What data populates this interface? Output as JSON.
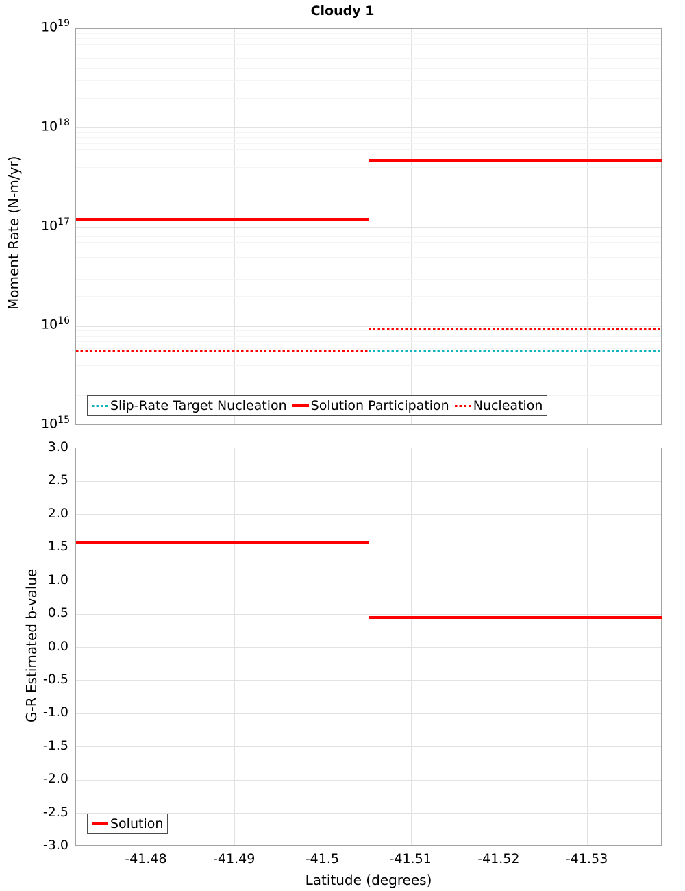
{
  "title": "Cloudy 1",
  "colors": {
    "red": "#fe0000",
    "teal": "#12b5bc",
    "grid_major": "#e2e2e2",
    "grid_minor": "#f4f4f4",
    "axis_border": "#a3a3a3",
    "legend_border": "#4d4d4d"
  },
  "chart_data": [
    {
      "type": "line",
      "name": "moment-rate-chart",
      "title": "Cloudy 1",
      "xlabel": "",
      "ylabel": "Moment Rate (N-m/yr)",
      "yscale": "log",
      "ylim": [
        1000000000000000.0,
        1e+19
      ],
      "ytick_exponents": [
        19,
        18,
        17,
        16,
        15
      ],
      "xlim": [
        -41.472,
        -41.5385
      ],
      "xtick_labels": [
        "-41.48",
        "-41.49",
        "-41.5",
        "-41.51",
        "-41.52",
        "-41.53"
      ],
      "xtick_values": [
        -41.48,
        -41.49,
        -41.5,
        -41.51,
        -41.52,
        -41.53
      ],
      "show_xtick_labels": false,
      "grid": true,
      "legend_position": "lower left",
      "legend": [
        {
          "label": "Slip-Rate Target Nucleation",
          "color": "teal",
          "style": "dotted"
        },
        {
          "label": "Solution Participation",
          "color": "red",
          "style": "solid"
        },
        {
          "label": "Nucleation",
          "color": "red",
          "style": "dotted"
        }
      ],
      "series": [
        {
          "name": "Slip-Rate Target Nucleation",
          "color": "teal",
          "style": "dotted",
          "segments": [
            {
              "x": [
                -41.5052,
                -41.5385
              ],
              "y": 5600000000000000.0
            }
          ]
        },
        {
          "name": "Solution Participation",
          "color": "red",
          "style": "solid",
          "segments": [
            {
              "x": [
                -41.472,
                -41.5052
              ],
              "y": 1.2e+17
            },
            {
              "x": [
                -41.5052,
                -41.5385
              ],
              "y": 4.7e+17
            }
          ]
        },
        {
          "name": "Nucleation",
          "color": "red",
          "style": "dotted",
          "segments": [
            {
              "x": [
                -41.472,
                -41.5052
              ],
              "y": 5600000000000000.0
            },
            {
              "x": [
                -41.5052,
                -41.5385
              ],
              "y": 9300000000000000.0
            }
          ]
        }
      ]
    },
    {
      "type": "line",
      "name": "b-value-chart",
      "title": "",
      "xlabel": "Latitude (degrees)",
      "ylabel": "G-R Estimated b-value",
      "yscale": "linear",
      "ylim": [
        -3.0,
        3.0
      ],
      "ytick_labels": [
        "3.0",
        "2.5",
        "2.0",
        "1.5",
        "1.0",
        "0.5",
        "0.0",
        "-0.5",
        "-1.0",
        "-1.5",
        "-2.0",
        "-2.5",
        "-3.0"
      ],
      "ytick_values": [
        3.0,
        2.5,
        2.0,
        1.5,
        1.0,
        0.5,
        0.0,
        -0.5,
        -1.0,
        -1.5,
        -2.0,
        -2.5,
        -3.0
      ],
      "xlim": [
        -41.472,
        -41.5385
      ],
      "xtick_labels": [
        "-41.48",
        "-41.49",
        "-41.5",
        "-41.51",
        "-41.52",
        "-41.53"
      ],
      "xtick_values": [
        -41.48,
        -41.49,
        -41.5,
        -41.51,
        -41.52,
        -41.53
      ],
      "show_xtick_labels": true,
      "grid": true,
      "legend_position": "lower left",
      "legend": [
        {
          "label": "Solution",
          "color": "red",
          "style": "solid"
        }
      ],
      "series": [
        {
          "name": "Solution",
          "color": "red",
          "style": "solid",
          "segments": [
            {
              "x": [
                -41.472,
                -41.5052
              ],
              "y": 1.58
            },
            {
              "x": [
                -41.5052,
                -41.5385
              ],
              "y": 0.45
            }
          ]
        }
      ]
    }
  ]
}
